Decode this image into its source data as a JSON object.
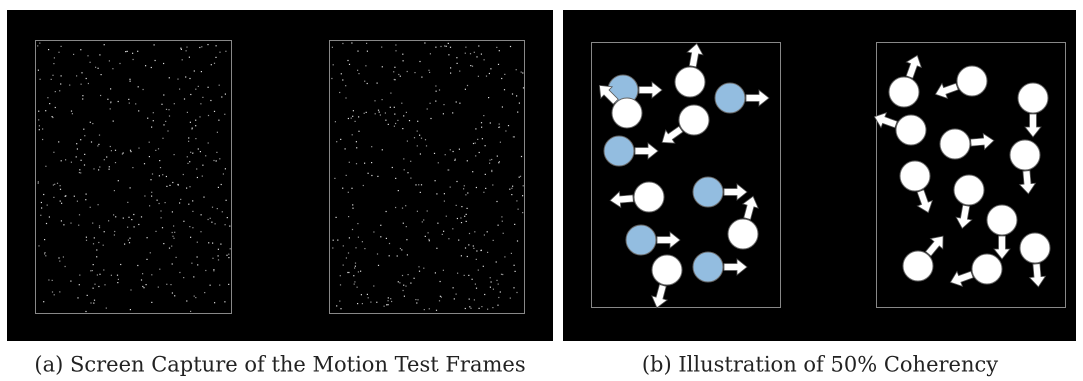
{
  "figures": [
    {
      "caption": "(a) Screen Capture of the Motion Test Frames"
    },
    {
      "caption": "(b) Illustration of 50% Coherency"
    }
  ]
}
